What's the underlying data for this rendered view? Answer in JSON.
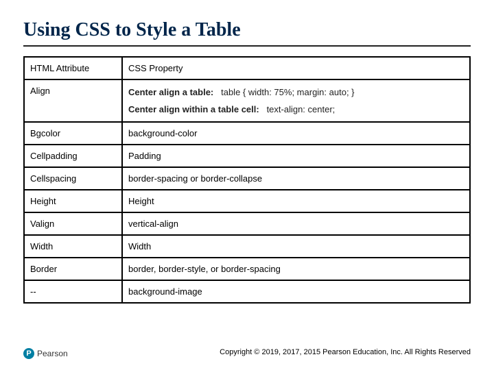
{
  "title": "Using CSS to Style a Table",
  "table": {
    "header": {
      "left": "HTML Attribute",
      "right": "CSS Property"
    },
    "align_row": {
      "left": "Align",
      "line1_label": "Center align a table:",
      "line1_code": "table { width: 75%; margin: auto; }",
      "line2_label": "Center align within a table cell:",
      "line2_code": "text-align: center;"
    },
    "rows": [
      {
        "left": "Bgcolor",
        "right": "background-color"
      },
      {
        "left": "Cellpadding",
        "right": "Padding"
      },
      {
        "left": "Cellspacing",
        "right": "border-spacing or border-collapse"
      },
      {
        "left": "Height",
        "right": "Height"
      },
      {
        "left": "Valign",
        "right": "vertical-align"
      },
      {
        "left": "Width",
        "right": "Width"
      },
      {
        "left": "Border",
        "right": "border, border-style, or border-spacing"
      },
      {
        "left": "--",
        "right": "background-image"
      }
    ]
  },
  "logo": {
    "mark": "P",
    "text": "Pearson"
  },
  "copyright": "Copyright © 2019, 2017, 2015 Pearson Education, Inc. All Rights Reserved",
  "style": {
    "title_color": "#00254a",
    "title_fontsize_pt": 21,
    "border_color": "#000000",
    "cell_fontsize_pt": 10,
    "background": "#ffffff",
    "logo_color": "#007fa3",
    "col_left_width_pct": 22,
    "col_right_width_pct": 78
  }
}
